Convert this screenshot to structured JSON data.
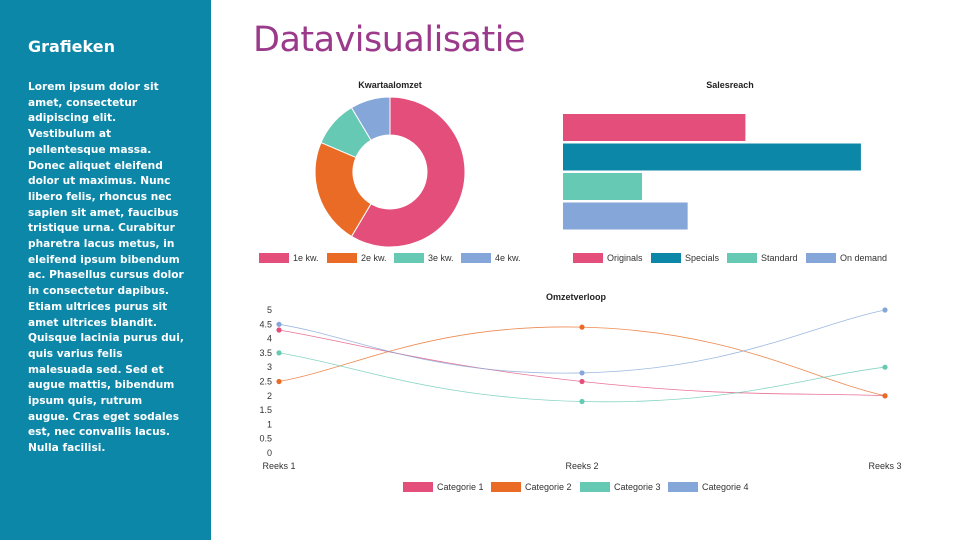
{
  "sidebar": {
    "title": "Grafieken",
    "text": "Lorem ipsum dolor sit amet, consectetur adipiscing elit. Vestibulum at pellentesque massa. Donec aliquet eleifend dolor ut maximus. Nunc libero felis, rhoncus nec sapien sit amet, faucibus tristique urna. Curabitur pharetra lacus metus, in eleifend ipsum bibendum ac. Phasellus cursus dolor in consectetur dapibus. Etiam ultrices purus sit amet ultrices blandit. Quisque lacinia purus dui, quis varius felis malesuada sed. Sed et augue mattis, bibendum ipsum quis, rutrum augue. Cras eget sodales est, nec convallis lacus. Nulla facilisi."
  },
  "page": {
    "title": "Datavisualisatie"
  },
  "colors": {
    "sidebar_bg": "#0c87a8",
    "title": "#9b3a8a",
    "pink": "#e34f7a",
    "orange": "#ea6b26",
    "teal": "#0c87a8",
    "mint": "#66c9b3",
    "blue": "#84a6d8"
  },
  "chart_data": [
    {
      "id": "kwartaalomzet",
      "type": "pie",
      "title": "Kwartaalomzet",
      "categories": [
        "1e kw.",
        "2e kw.",
        "3e kw.",
        "4e kw."
      ],
      "values": [
        8.2,
        3.2,
        1.4,
        1.2
      ],
      "colors": [
        "#e34f7a",
        "#ea6b26",
        "#66c9b3",
        "#84a6d8"
      ],
      "legend": "bottom"
    },
    {
      "id": "salesreach",
      "type": "bar",
      "orientation": "horizontal",
      "title": "Salesreach",
      "categories": [
        "Originals",
        "Specials",
        "Standard",
        "On demand"
      ],
      "values": [
        6,
        9.8,
        2.6,
        4.1
      ],
      "xlim": [
        0,
        10
      ],
      "colors": [
        "#e34f7a",
        "#0c87a8",
        "#66c9b3",
        "#84a6d8"
      ],
      "legend": "bottom"
    },
    {
      "id": "omzetverloop",
      "type": "line",
      "smooth": true,
      "title": "Omzetverloop",
      "x": [
        "Reeks 1",
        "Reeks 2",
        "Reeks 3"
      ],
      "ylim": [
        0,
        5
      ],
      "yticks": [
        "0",
        "0.5",
        "1",
        "1.5",
        "2",
        "2.5",
        "3",
        "3.5",
        "4",
        "4.5",
        "5"
      ],
      "series": [
        {
          "name": "Categorie 1",
          "values": [
            4.3,
            2.5,
            2.0
          ],
          "color": "#e34f7a"
        },
        {
          "name": "Categorie 2",
          "values": [
            2.5,
            4.4,
            2.0
          ],
          "color": "#ea6b26"
        },
        {
          "name": "Categorie 3",
          "values": [
            3.5,
            1.8,
            3.0
          ],
          "color": "#66c9b3"
        },
        {
          "name": "Categorie 4",
          "values": [
            4.5,
            2.8,
            5.0
          ],
          "color": "#84a6d8"
        }
      ],
      "legend": "bottom"
    }
  ]
}
